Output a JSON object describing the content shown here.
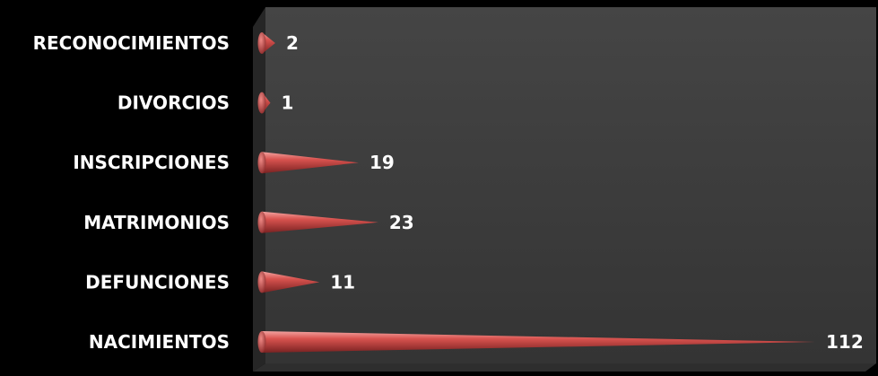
{
  "chart_data": {
    "type": "bar",
    "orientation": "horizontal",
    "bar_shape": "cone",
    "categories": [
      "RECONOCIMIENTOS",
      "DIVORCIOS",
      "INSCRIPCIONES",
      "MATRIMONIOS",
      "DEFUNCIONES",
      "NACIMIENTOS"
    ],
    "values": [
      2,
      1,
      19,
      23,
      11,
      112
    ],
    "xlim": [
      0,
      112
    ],
    "grid": false,
    "legend": "none",
    "colors": {
      "background": "#000000",
      "plot_area": "#3c3c3c",
      "plot_side": "#2a2a2a",
      "bar": "#d9534f",
      "bar_dark": "#8e2b2b",
      "text": "#ffffff"
    }
  }
}
